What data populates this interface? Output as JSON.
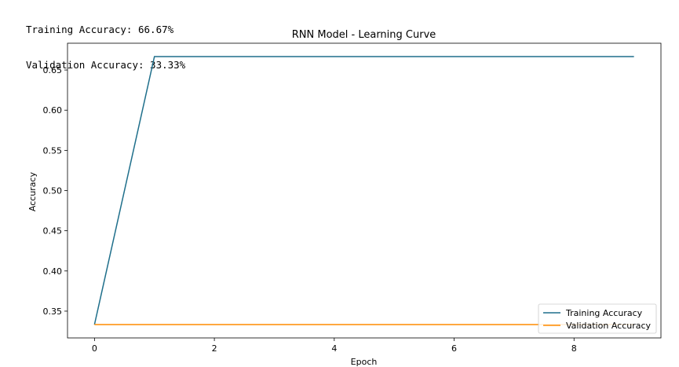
{
  "console": {
    "lines": [
      "Training Accuracy: 66.67%",
      "Validation Accuracy: 33.33%"
    ]
  },
  "chart_data": {
    "type": "line",
    "title": "RNN Model - Learning Curve",
    "xlabel": "Epoch",
    "ylabel": "Accuracy",
    "xlim": [
      -0.45,
      9.45
    ],
    "ylim": [
      0.3167,
      0.6833
    ],
    "x_ticks": [
      0,
      2,
      4,
      6,
      8
    ],
    "y_ticks": [
      0.35,
      0.4,
      0.45,
      0.5,
      0.55,
      0.6,
      0.65
    ],
    "x_tick_labels": [
      "0",
      "2",
      "4",
      "6",
      "8"
    ],
    "y_tick_labels": [
      "0.35",
      "0.40",
      "0.45",
      "0.50",
      "0.55",
      "0.60",
      "0.65"
    ],
    "grid": false,
    "legend_position": "lower-right",
    "x": [
      0,
      1,
      2,
      3,
      4,
      5,
      6,
      7,
      8,
      9
    ],
    "series": [
      {
        "name": "Training Accuracy",
        "color": "#1f6f8b",
        "values": [
          0.3333,
          0.6667,
          0.6667,
          0.6667,
          0.6667,
          0.6667,
          0.6667,
          0.6667,
          0.6667,
          0.6667
        ]
      },
      {
        "name": "Validation Accuracy",
        "color": "#ff8c00",
        "values": [
          0.3333,
          0.3333,
          0.3333,
          0.3333,
          0.3333,
          0.3333,
          0.3333,
          0.3333,
          0.3333,
          0.3333
        ]
      }
    ]
  }
}
